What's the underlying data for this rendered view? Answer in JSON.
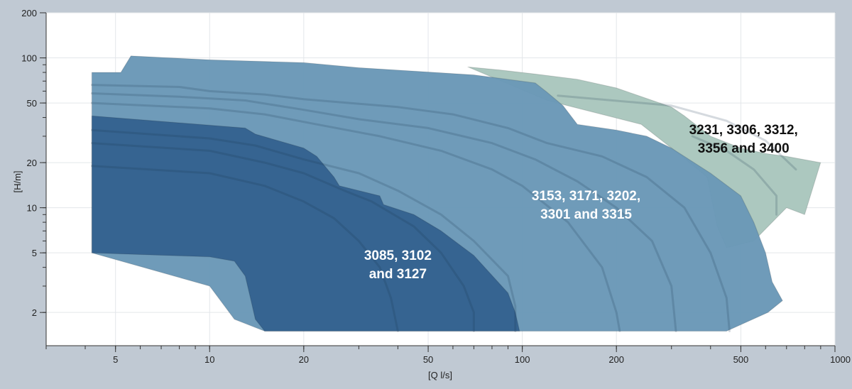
{
  "chart_data": {
    "type": "area",
    "title": "",
    "xlabel": "[Q l/s]",
    "ylabel": "[H/m]",
    "x_scale": "log",
    "y_scale": "log",
    "xlim": [
      3,
      1000
    ],
    "ylim": [
      1.2,
      200
    ],
    "grid": true,
    "x_ticks": [
      {
        "value": 5,
        "label": "5"
      },
      {
        "value": 10,
        "label": "10"
      },
      {
        "value": 20,
        "label": "20"
      },
      {
        "value": 50,
        "label": "50"
      },
      {
        "value": 100,
        "label": "100"
      },
      {
        "value": 200,
        "label": "200"
      },
      {
        "value": 500,
        "label": "500"
      },
      {
        "value": 1000,
        "label": "1000"
      }
    ],
    "y_ticks": [
      {
        "value": 2,
        "label": "2"
      },
      {
        "value": 5,
        "label": "5"
      },
      {
        "value": 10,
        "label": "10"
      },
      {
        "value": 20,
        "label": "20"
      },
      {
        "value": 50,
        "label": "50"
      },
      {
        "value": 100,
        "label": "100"
      },
      {
        "value": 200,
        "label": "200"
      }
    ],
    "series": [
      {
        "name": "3231, 3306, 3312, 3356 and 3400",
        "label_lines": [
          "3231, 3306, 3312,",
          "3356 and 3400"
        ],
        "label_color": "#111111",
        "color": "#a9c6bd",
        "boundary": [
          [
            67,
            87
          ],
          [
            85,
            83
          ],
          [
            110,
            78
          ],
          [
            150,
            72
          ],
          [
            200,
            63
          ],
          [
            300,
            47
          ],
          [
            330,
            41
          ],
          [
            400,
            30
          ],
          [
            500,
            25
          ],
          [
            600,
            23
          ],
          [
            700,
            22
          ],
          [
            900,
            20
          ],
          [
            800,
            9
          ],
          [
            700,
            10
          ],
          [
            550,
            6
          ],
          [
            450,
            5.4
          ],
          [
            420,
            7.5
          ],
          [
            390,
            16
          ],
          [
            300,
            25
          ],
          [
            240,
            36
          ],
          [
            120,
            52
          ],
          [
            67,
            87
          ]
        ],
        "label_at": [
          510,
          31
        ]
      },
      {
        "name": "3153, 3171, 3202, 3301 and 3315",
        "label_lines": [
          "3153, 3171, 3202,",
          "3301 and 3315"
        ],
        "label_color": "#ffffff",
        "color": "#6a98b7",
        "boundary": [
          [
            4.2,
            80
          ],
          [
            5.2,
            80
          ],
          [
            5.6,
            103
          ],
          [
            10,
            97
          ],
          [
            20,
            93
          ],
          [
            30,
            86
          ],
          [
            70,
            77
          ],
          [
            110,
            68
          ],
          [
            120,
            59
          ],
          [
            135,
            48
          ],
          [
            150,
            36
          ],
          [
            200,
            33
          ],
          [
            250,
            30
          ],
          [
            300,
            25
          ],
          [
            400,
            17
          ],
          [
            500,
            12
          ],
          [
            550,
            8
          ],
          [
            600,
            5
          ],
          [
            630,
            3.2
          ],
          [
            680,
            2.4
          ],
          [
            610,
            2
          ],
          [
            450,
            1.5
          ],
          [
            15,
            1.5
          ],
          [
            12,
            1.8
          ],
          [
            10,
            3
          ],
          [
            4.2,
            5
          ],
          [
            4.2,
            80
          ]
        ],
        "label_at": [
          160,
          11.2
        ]
      },
      {
        "name": "3085, 3102 and 3127",
        "label_lines": [
          "3085, 3102",
          "and 3127"
        ],
        "label_color": "#ffffff",
        "color": "#35628f",
        "boundary": [
          [
            4.2,
            41
          ],
          [
            13,
            34
          ],
          [
            14,
            31
          ],
          [
            20,
            25
          ],
          [
            22,
            22
          ],
          [
            25,
            16
          ],
          [
            26,
            14
          ],
          [
            30,
            13
          ],
          [
            35,
            12
          ],
          [
            36,
            10.5
          ],
          [
            45,
            9
          ],
          [
            55,
            7
          ],
          [
            70,
            4.8
          ],
          [
            90,
            2.7
          ],
          [
            95,
            2
          ],
          [
            98,
            1.5
          ],
          [
            15,
            1.5
          ],
          [
            14,
            1.8
          ],
          [
            13.5,
            2.5
          ],
          [
            13,
            3.5
          ],
          [
            12,
            4.4
          ],
          [
            10,
            4.7
          ],
          [
            4.2,
            5
          ],
          [
            4.2,
            41
          ]
        ],
        "label_at": [
          40,
          4.5
        ]
      }
    ],
    "inner_curves": [
      {
        "series": "3231, 3306, 3312, 3356 and 3400",
        "points": [
          [
            130,
            56
          ],
          [
            300,
            48
          ],
          [
            450,
            38
          ],
          [
            600,
            28
          ],
          [
            750,
            18
          ]
        ]
      },
      {
        "series": "3231, 3306, 3312, 3356 and 3400",
        "points": [
          [
            350,
            30
          ],
          [
            450,
            24
          ],
          [
            550,
            18
          ],
          [
            650,
            12
          ],
          [
            650,
            9
          ]
        ]
      },
      {
        "series": "3153, 3171, 3202, 3301 and 3315",
        "points": [
          [
            4.2,
            66
          ],
          [
            8,
            64
          ],
          [
            10,
            60
          ],
          [
            15,
            57
          ],
          [
            20,
            53
          ],
          [
            40,
            47
          ],
          [
            60,
            42
          ],
          [
            90,
            34
          ],
          [
            120,
            27
          ],
          [
            180,
            22
          ],
          [
            250,
            16
          ],
          [
            330,
            10
          ],
          [
            400,
            5
          ],
          [
            450,
            2.5
          ],
          [
            460,
            1.5
          ]
        ]
      },
      {
        "series": "3153, 3171, 3202, 3301 and 3315",
        "points": [
          [
            4.2,
            58
          ],
          [
            8,
            55
          ],
          [
            13,
            52
          ],
          [
            20,
            45
          ],
          [
            30,
            39
          ],
          [
            50,
            34
          ],
          [
            80,
            27
          ],
          [
            110,
            21
          ],
          [
            150,
            15
          ],
          [
            200,
            10
          ],
          [
            260,
            6
          ],
          [
            300,
            3
          ],
          [
            310,
            1.5
          ]
        ]
      },
      {
        "series": "3153, 3171, 3202, 3301 and 3315",
        "points": [
          [
            4.2,
            50
          ],
          [
            10,
            46
          ],
          [
            15,
            42
          ],
          [
            22,
            36
          ],
          [
            35,
            30
          ],
          [
            55,
            24
          ],
          [
            80,
            18
          ],
          [
            100,
            14
          ],
          [
            140,
            8
          ],
          [
            180,
            4
          ],
          [
            200,
            2
          ],
          [
            205,
            1.5
          ]
        ]
      },
      {
        "series": "3085, 3102 and 3127",
        "points": [
          [
            4.2,
            33
          ],
          [
            10,
            29
          ],
          [
            14,
            26
          ],
          [
            20,
            21
          ],
          [
            30,
            17
          ],
          [
            40,
            13
          ],
          [
            55,
            9
          ],
          [
            70,
            6
          ],
          [
            90,
            3.5
          ],
          [
            95,
            2.2
          ],
          [
            95,
            1.5
          ]
        ]
      },
      {
        "series": "3085, 3102 and 3127",
        "points": [
          [
            4.2,
            27
          ],
          [
            10,
            24
          ],
          [
            15,
            20
          ],
          [
            20,
            17
          ],
          [
            27,
            13
          ],
          [
            33,
            11
          ],
          [
            45,
            7.5
          ],
          [
            55,
            5
          ],
          [
            65,
            3
          ],
          [
            70,
            2
          ],
          [
            70,
            1.5
          ]
        ]
      },
      {
        "series": "3085, 3102 and 3127",
        "points": [
          [
            4.2,
            19
          ],
          [
            10,
            17
          ],
          [
            15,
            14
          ],
          [
            20,
            11
          ],
          [
            25,
            8.5
          ],
          [
            30,
            6
          ],
          [
            35,
            4
          ],
          [
            38,
            2.5
          ],
          [
            40,
            1.5
          ]
        ]
      }
    ]
  }
}
